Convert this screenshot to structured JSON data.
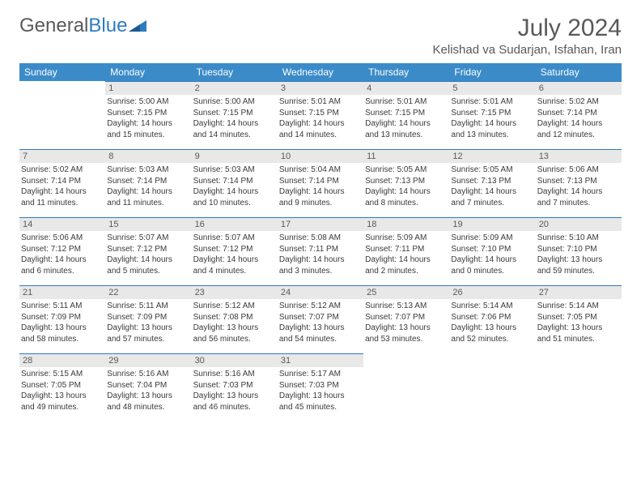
{
  "logo": {
    "text1": "General",
    "text2": "Blue"
  },
  "title": "July 2024",
  "location": "Kelishad va Sudarjan, Isfahan, Iran",
  "colors": {
    "header_bg": "#3b8bc9",
    "header_text": "#ffffff",
    "daynum_bg": "#e8e8e8",
    "daynum_border": "#2e7cc0",
    "text_gray": "#595959",
    "body_text": "#3a3a3a",
    "logo_gray": "#5a5a5a",
    "logo_blue": "#2e7cc0"
  },
  "weekdays": [
    "Sunday",
    "Monday",
    "Tuesday",
    "Wednesday",
    "Thursday",
    "Friday",
    "Saturday"
  ],
  "weeks": [
    [
      null,
      {
        "n": "1",
        "sr": "Sunrise: 5:00 AM",
        "ss": "Sunset: 7:15 PM",
        "dl1": "Daylight: 14 hours",
        "dl2": "and 15 minutes."
      },
      {
        "n": "2",
        "sr": "Sunrise: 5:00 AM",
        "ss": "Sunset: 7:15 PM",
        "dl1": "Daylight: 14 hours",
        "dl2": "and 14 minutes."
      },
      {
        "n": "3",
        "sr": "Sunrise: 5:01 AM",
        "ss": "Sunset: 7:15 PM",
        "dl1": "Daylight: 14 hours",
        "dl2": "and 14 minutes."
      },
      {
        "n": "4",
        "sr": "Sunrise: 5:01 AM",
        "ss": "Sunset: 7:15 PM",
        "dl1": "Daylight: 14 hours",
        "dl2": "and 13 minutes."
      },
      {
        "n": "5",
        "sr": "Sunrise: 5:01 AM",
        "ss": "Sunset: 7:15 PM",
        "dl1": "Daylight: 14 hours",
        "dl2": "and 13 minutes."
      },
      {
        "n": "6",
        "sr": "Sunrise: 5:02 AM",
        "ss": "Sunset: 7:14 PM",
        "dl1": "Daylight: 14 hours",
        "dl2": "and 12 minutes."
      }
    ],
    [
      {
        "n": "7",
        "sr": "Sunrise: 5:02 AM",
        "ss": "Sunset: 7:14 PM",
        "dl1": "Daylight: 14 hours",
        "dl2": "and 11 minutes."
      },
      {
        "n": "8",
        "sr": "Sunrise: 5:03 AM",
        "ss": "Sunset: 7:14 PM",
        "dl1": "Daylight: 14 hours",
        "dl2": "and 11 minutes."
      },
      {
        "n": "9",
        "sr": "Sunrise: 5:03 AM",
        "ss": "Sunset: 7:14 PM",
        "dl1": "Daylight: 14 hours",
        "dl2": "and 10 minutes."
      },
      {
        "n": "10",
        "sr": "Sunrise: 5:04 AM",
        "ss": "Sunset: 7:14 PM",
        "dl1": "Daylight: 14 hours",
        "dl2": "and 9 minutes."
      },
      {
        "n": "11",
        "sr": "Sunrise: 5:05 AM",
        "ss": "Sunset: 7:13 PM",
        "dl1": "Daylight: 14 hours",
        "dl2": "and 8 minutes."
      },
      {
        "n": "12",
        "sr": "Sunrise: 5:05 AM",
        "ss": "Sunset: 7:13 PM",
        "dl1": "Daylight: 14 hours",
        "dl2": "and 7 minutes."
      },
      {
        "n": "13",
        "sr": "Sunrise: 5:06 AM",
        "ss": "Sunset: 7:13 PM",
        "dl1": "Daylight: 14 hours",
        "dl2": "and 7 minutes."
      }
    ],
    [
      {
        "n": "14",
        "sr": "Sunrise: 5:06 AM",
        "ss": "Sunset: 7:12 PM",
        "dl1": "Daylight: 14 hours",
        "dl2": "and 6 minutes."
      },
      {
        "n": "15",
        "sr": "Sunrise: 5:07 AM",
        "ss": "Sunset: 7:12 PM",
        "dl1": "Daylight: 14 hours",
        "dl2": "and 5 minutes."
      },
      {
        "n": "16",
        "sr": "Sunrise: 5:07 AM",
        "ss": "Sunset: 7:12 PM",
        "dl1": "Daylight: 14 hours",
        "dl2": "and 4 minutes."
      },
      {
        "n": "17",
        "sr": "Sunrise: 5:08 AM",
        "ss": "Sunset: 7:11 PM",
        "dl1": "Daylight: 14 hours",
        "dl2": "and 3 minutes."
      },
      {
        "n": "18",
        "sr": "Sunrise: 5:09 AM",
        "ss": "Sunset: 7:11 PM",
        "dl1": "Daylight: 14 hours",
        "dl2": "and 2 minutes."
      },
      {
        "n": "19",
        "sr": "Sunrise: 5:09 AM",
        "ss": "Sunset: 7:10 PM",
        "dl1": "Daylight: 14 hours",
        "dl2": "and 0 minutes."
      },
      {
        "n": "20",
        "sr": "Sunrise: 5:10 AM",
        "ss": "Sunset: 7:10 PM",
        "dl1": "Daylight: 13 hours",
        "dl2": "and 59 minutes."
      }
    ],
    [
      {
        "n": "21",
        "sr": "Sunrise: 5:11 AM",
        "ss": "Sunset: 7:09 PM",
        "dl1": "Daylight: 13 hours",
        "dl2": "and 58 minutes."
      },
      {
        "n": "22",
        "sr": "Sunrise: 5:11 AM",
        "ss": "Sunset: 7:09 PM",
        "dl1": "Daylight: 13 hours",
        "dl2": "and 57 minutes."
      },
      {
        "n": "23",
        "sr": "Sunrise: 5:12 AM",
        "ss": "Sunset: 7:08 PM",
        "dl1": "Daylight: 13 hours",
        "dl2": "and 56 minutes."
      },
      {
        "n": "24",
        "sr": "Sunrise: 5:12 AM",
        "ss": "Sunset: 7:07 PM",
        "dl1": "Daylight: 13 hours",
        "dl2": "and 54 minutes."
      },
      {
        "n": "25",
        "sr": "Sunrise: 5:13 AM",
        "ss": "Sunset: 7:07 PM",
        "dl1": "Daylight: 13 hours",
        "dl2": "and 53 minutes."
      },
      {
        "n": "26",
        "sr": "Sunrise: 5:14 AM",
        "ss": "Sunset: 7:06 PM",
        "dl1": "Daylight: 13 hours",
        "dl2": "and 52 minutes."
      },
      {
        "n": "27",
        "sr": "Sunrise: 5:14 AM",
        "ss": "Sunset: 7:05 PM",
        "dl1": "Daylight: 13 hours",
        "dl2": "and 51 minutes."
      }
    ],
    [
      {
        "n": "28",
        "sr": "Sunrise: 5:15 AM",
        "ss": "Sunset: 7:05 PM",
        "dl1": "Daylight: 13 hours",
        "dl2": "and 49 minutes."
      },
      {
        "n": "29",
        "sr": "Sunrise: 5:16 AM",
        "ss": "Sunset: 7:04 PM",
        "dl1": "Daylight: 13 hours",
        "dl2": "and 48 minutes."
      },
      {
        "n": "30",
        "sr": "Sunrise: 5:16 AM",
        "ss": "Sunset: 7:03 PM",
        "dl1": "Daylight: 13 hours",
        "dl2": "and 46 minutes."
      },
      {
        "n": "31",
        "sr": "Sunrise: 5:17 AM",
        "ss": "Sunset: 7:03 PM",
        "dl1": "Daylight: 13 hours",
        "dl2": "and 45 minutes."
      },
      null,
      null,
      null
    ]
  ]
}
